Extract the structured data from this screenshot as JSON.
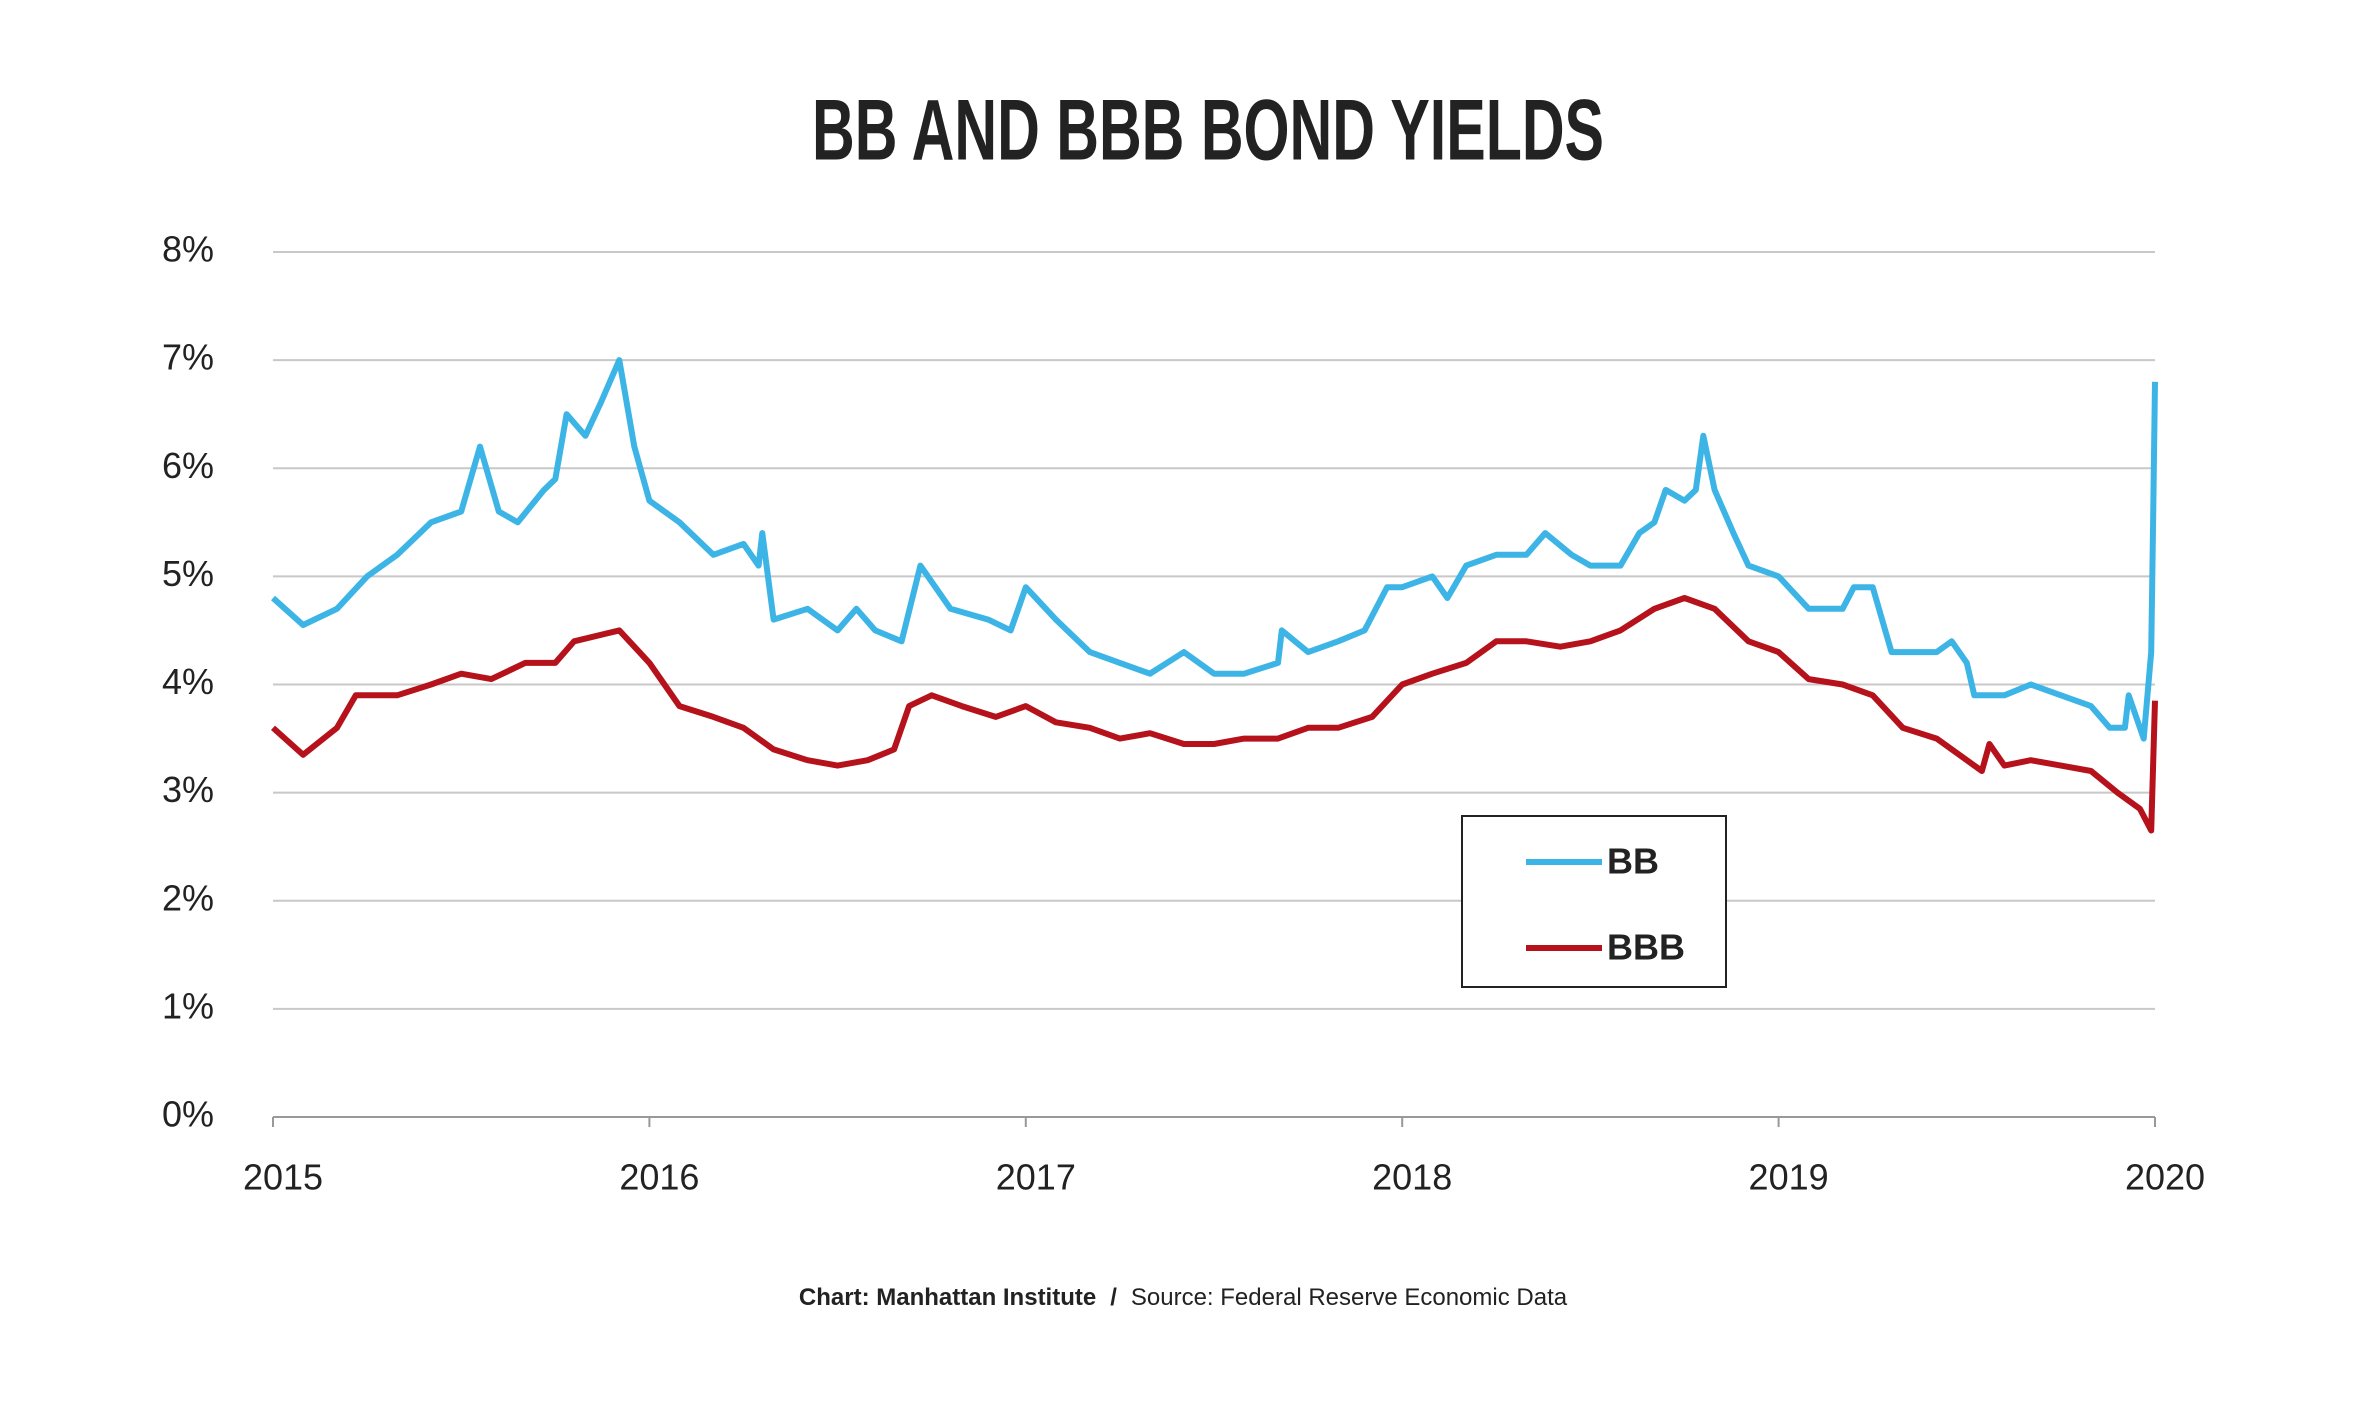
{
  "chart_data": {
    "type": "line",
    "title": "BB AND BBB BOND YIELDS",
    "footer": {
      "credit": "Chart: Manhattan Institute",
      "separator": "/",
      "source": "Source: Federal Reserve Economic Data"
    },
    "xlim": [
      2015,
      2020
    ],
    "xticks": [
      2015,
      2016,
      2017,
      2018,
      2019,
      2020
    ],
    "ylim": [
      0,
      8
    ],
    "yticks": [
      {
        "value": 0,
        "label": "0%"
      },
      {
        "value": 1,
        "label": "1%"
      },
      {
        "value": 2,
        "label": "2%"
      },
      {
        "value": 3,
        "label": "3%"
      },
      {
        "value": 4,
        "label": "4%"
      },
      {
        "value": 5,
        "label": "5%"
      },
      {
        "value": 6,
        "label": "6%"
      },
      {
        "value": 7,
        "label": "7%"
      },
      {
        "value": 8,
        "label": "8%"
      }
    ],
    "grid": true,
    "legend": "center right",
    "series": [
      {
        "name": "BB",
        "color": "#3db4e6",
        "x": [
          2015.0,
          2015.08,
          2015.17,
          2015.25,
          2015.33,
          2015.42,
          2015.5,
          2015.55,
          2015.6,
          2015.65,
          2015.72,
          2015.75,
          2015.78,
          2015.83,
          2015.87,
          2015.92,
          2015.96,
          2016.0,
          2016.08,
          2016.17,
          2016.25,
          2016.29,
          2016.3,
          2016.33,
          2016.42,
          2016.5,
          2016.55,
          2016.6,
          2016.67,
          2016.72,
          2016.8,
          2016.9,
          2016.96,
          2017.0,
          2017.08,
          2017.17,
          2017.25,
          2017.33,
          2017.42,
          2017.5,
          2017.58,
          2017.67,
          2017.68,
          2017.75,
          2017.83,
          2017.9,
          2017.96,
          2018.0,
          2018.08,
          2018.12,
          2018.17,
          2018.25,
          2018.33,
          2018.38,
          2018.45,
          2018.5,
          2018.58,
          2018.63,
          2018.67,
          2018.7,
          2018.75,
          2018.78,
          2018.8,
          2018.83,
          2018.88,
          2018.92,
          2019.0,
          2019.08,
          2019.17,
          2019.2,
          2019.25,
          2019.3,
          2019.42,
          2019.46,
          2019.5,
          2019.52,
          2019.6,
          2019.67,
          2019.75,
          2019.83,
          2019.88,
          2019.92,
          2019.93,
          2019.97,
          2019.99,
          2019.995,
          2020.0
        ],
        "values": [
          4.8,
          4.55,
          4.7,
          5.0,
          5.2,
          5.5,
          5.6,
          6.2,
          5.6,
          5.5,
          5.8,
          5.9,
          6.5,
          6.3,
          6.6,
          7.0,
          6.2,
          5.7,
          5.5,
          5.2,
          5.3,
          5.1,
          5.4,
          4.6,
          4.7,
          4.5,
          4.7,
          4.5,
          4.4,
          5.1,
          4.7,
          4.6,
          4.5,
          4.9,
          4.6,
          4.3,
          4.2,
          4.1,
          4.3,
          4.1,
          4.1,
          4.2,
          4.5,
          4.3,
          4.4,
          4.5,
          4.9,
          4.9,
          5.0,
          4.8,
          5.1,
          5.2,
          5.2,
          5.4,
          5.2,
          5.1,
          5.1,
          5.4,
          5.5,
          5.8,
          5.7,
          5.8,
          6.3,
          5.8,
          5.4,
          5.1,
          5.0,
          4.7,
          4.7,
          4.9,
          4.9,
          4.3,
          4.3,
          4.4,
          4.2,
          3.9,
          3.9,
          4.0,
          3.9,
          3.8,
          3.6,
          3.6,
          3.9,
          3.5,
          4.3,
          5.5,
          6.8
        ]
      },
      {
        "name": "BBB",
        "color": "#b5121b",
        "x": [
          2015.0,
          2015.08,
          2015.17,
          2015.22,
          2015.33,
          2015.42,
          2015.5,
          2015.58,
          2015.67,
          2015.75,
          2015.8,
          2015.92,
          2016.0,
          2016.08,
          2016.17,
          2016.25,
          2016.33,
          2016.42,
          2016.5,
          2016.58,
          2016.65,
          2016.69,
          2016.75,
          2016.83,
          2016.92,
          2017.0,
          2017.08,
          2017.17,
          2017.25,
          2017.33,
          2017.42,
          2017.5,
          2017.58,
          2017.67,
          2017.75,
          2017.83,
          2017.92,
          2018.0,
          2018.08,
          2018.17,
          2018.25,
          2018.33,
          2018.42,
          2018.5,
          2018.58,
          2018.67,
          2018.75,
          2018.83,
          2018.92,
          2019.0,
          2019.08,
          2019.17,
          2019.25,
          2019.33,
          2019.42,
          2019.5,
          2019.54,
          2019.56,
          2019.6,
          2019.67,
          2019.75,
          2019.83,
          2019.9,
          2019.96,
          2019.99,
          2020.0
        ],
        "values": [
          3.6,
          3.35,
          3.6,
          3.9,
          3.9,
          4.0,
          4.1,
          4.05,
          4.2,
          4.2,
          4.4,
          4.5,
          4.2,
          3.8,
          3.7,
          3.6,
          3.4,
          3.3,
          3.25,
          3.3,
          3.4,
          3.8,
          3.9,
          3.8,
          3.7,
          3.8,
          3.65,
          3.6,
          3.5,
          3.55,
          3.45,
          3.45,
          3.5,
          3.5,
          3.6,
          3.6,
          3.7,
          4.0,
          4.1,
          4.2,
          4.4,
          4.4,
          4.35,
          4.4,
          4.5,
          4.7,
          4.8,
          4.7,
          4.4,
          4.3,
          4.05,
          4.0,
          3.9,
          3.6,
          3.5,
          3.3,
          3.2,
          3.45,
          3.25,
          3.3,
          3.25,
          3.2,
          3.0,
          2.85,
          2.65,
          3.85
        ]
      }
    ]
  }
}
